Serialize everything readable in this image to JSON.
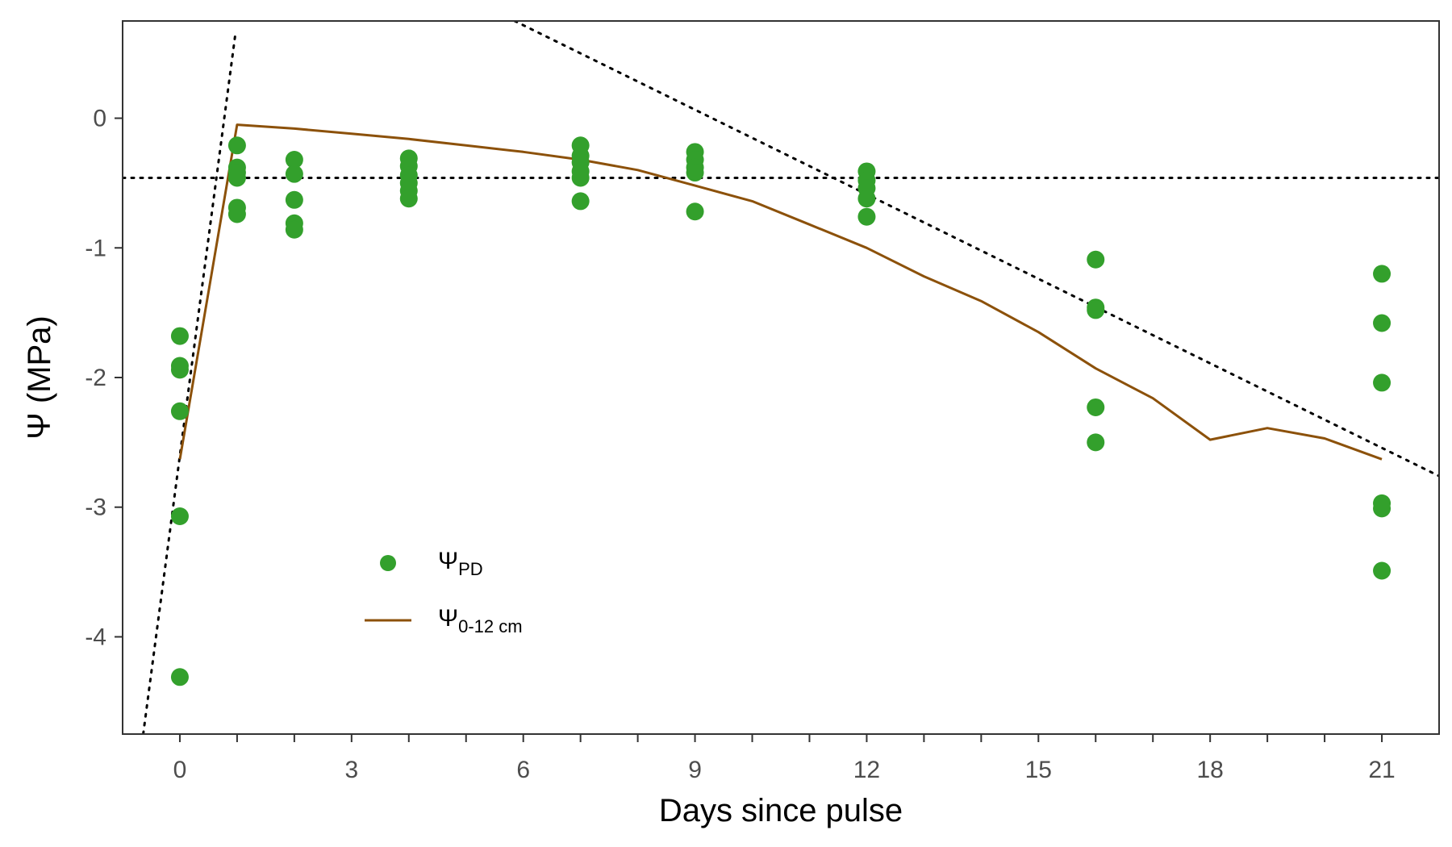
{
  "chart_data": {
    "type": "scatter",
    "xlabel": "Days since pulse",
    "ylabel": "Ψ (MPa)",
    "xlim": [
      -1,
      22
    ],
    "ylim": [
      -4.75,
      0.75
    ],
    "xticks_major": [
      0,
      3,
      6,
      9,
      12,
      15,
      18,
      21
    ],
    "xticks_minor": [
      1,
      2,
      4,
      5,
      7,
      8,
      10,
      11,
      13,
      14,
      16,
      17,
      19,
      20
    ],
    "yticks": [
      0,
      -1,
      -2,
      -3,
      -4
    ],
    "grid": false,
    "legend_position": "bottom-left inside",
    "colors": {
      "points": "#33a02c",
      "line": "#8c510a",
      "reference": "#000000"
    },
    "series": [
      {
        "name": "Ψ_PD",
        "legend": {
          "main": "Ψ",
          "sub": "PD"
        },
        "kind": "points",
        "points": [
          [
            0,
            -1.68
          ],
          [
            0,
            -1.91
          ],
          [
            0,
            -1.94
          ],
          [
            0,
            -2.26
          ],
          [
            0,
            -3.07
          ],
          [
            0,
            -4.31
          ],
          [
            1,
            -0.21
          ],
          [
            1,
            -0.38
          ],
          [
            1,
            -0.42
          ],
          [
            1,
            -0.46
          ],
          [
            1,
            -0.69
          ],
          [
            1,
            -0.74
          ],
          [
            2,
            -0.32
          ],
          [
            2,
            -0.43
          ],
          [
            2,
            -0.63
          ],
          [
            2,
            -0.81
          ],
          [
            2,
            -0.86
          ],
          [
            4,
            -0.31
          ],
          [
            4,
            -0.37
          ],
          [
            4,
            -0.44
          ],
          [
            4,
            -0.5
          ],
          [
            4,
            -0.56
          ],
          [
            4,
            -0.62
          ],
          [
            7,
            -0.21
          ],
          [
            7,
            -0.29
          ],
          [
            7,
            -0.34
          ],
          [
            7,
            -0.41
          ],
          [
            7,
            -0.46
          ],
          [
            7,
            -0.64
          ],
          [
            9,
            -0.26
          ],
          [
            9,
            -0.32
          ],
          [
            9,
            -0.38
          ],
          [
            9,
            -0.42
          ],
          [
            9,
            -0.72
          ],
          [
            12,
            -0.41
          ],
          [
            12,
            -0.48
          ],
          [
            12,
            -0.54
          ],
          [
            12,
            -0.62
          ],
          [
            12,
            -0.76
          ],
          [
            16,
            -1.09
          ],
          [
            16,
            -1.46
          ],
          [
            16,
            -1.48
          ],
          [
            16,
            -2.23
          ],
          [
            16,
            -2.5
          ],
          [
            21,
            -1.2
          ],
          [
            21,
            -1.58
          ],
          [
            21,
            -2.04
          ],
          [
            21,
            -2.97
          ],
          [
            21,
            -3.01
          ],
          [
            21,
            -3.49
          ]
        ]
      },
      {
        "name": "Ψ_0-12 cm",
        "legend": {
          "main": "Ψ",
          "sub": "0-12 cm"
        },
        "kind": "line",
        "x": [
          0,
          1,
          2,
          3,
          4,
          5,
          6,
          7,
          8,
          9,
          10,
          11,
          12,
          13,
          14,
          15,
          16,
          17,
          18,
          19,
          20,
          21
        ],
        "y": [
          -2.63,
          -0.05,
          -0.08,
          -0.12,
          -0.16,
          -0.21,
          -0.26,
          -0.32,
          -0.4,
          -0.52,
          -0.64,
          -0.82,
          -1.0,
          -1.22,
          -1.41,
          -1.65,
          -1.93,
          -2.16,
          -2.48,
          -2.39,
          -2.47,
          -2.63
        ]
      }
    ],
    "reference_lines": [
      {
        "style": "dotted",
        "x": [
          -0.64,
          0.97
        ],
        "y": [
          -4.75,
          0.65
        ]
      },
      {
        "style": "dotted",
        "x": [
          5.85,
          22
        ],
        "y": [
          0.75,
          -2.76
        ]
      },
      {
        "style": "dotted",
        "x": [
          -1,
          22
        ],
        "y": [
          -0.46,
          -0.46
        ]
      }
    ]
  }
}
